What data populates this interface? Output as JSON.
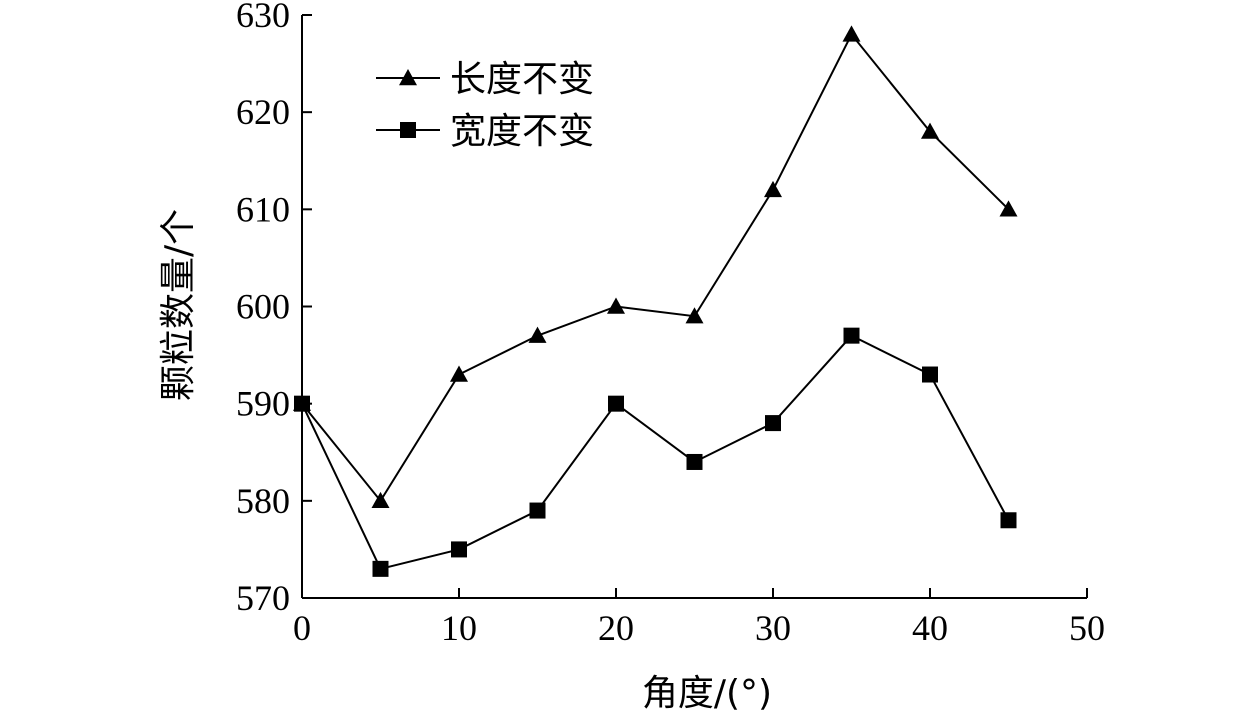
{
  "chart_data": {
    "type": "line",
    "title": "",
    "xlabel": "角度/(°)",
    "ylabel": "颗粒数量/个",
    "xlim": [
      0,
      50
    ],
    "ylim": [
      570,
      630
    ],
    "xticks": [
      0,
      10,
      20,
      30,
      40,
      50
    ],
    "yticks": [
      570,
      580,
      590,
      600,
      610,
      620,
      630
    ],
    "grid": false,
    "legend_position": "top-left",
    "x": [
      0,
      5,
      10,
      15,
      20,
      25,
      30,
      35,
      40,
      45
    ],
    "series": [
      {
        "name": "长度不变",
        "marker": "triangle",
        "color": "#000000",
        "values": [
          590,
          580,
          593,
          597,
          600,
          599,
          612,
          628,
          618,
          610
        ]
      },
      {
        "name": "宽度不变",
        "marker": "square",
        "color": "#000000",
        "values": [
          590,
          573,
          575,
          579,
          590,
          584,
          588,
          597,
          593,
          578
        ]
      }
    ]
  }
}
